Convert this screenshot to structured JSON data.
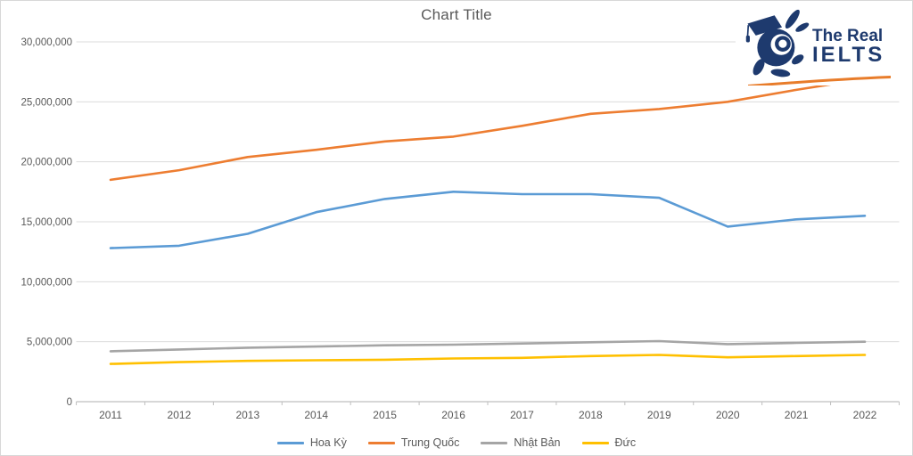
{
  "logo": {
    "line1": "The Real",
    "line2": "IELTS",
    "color": "#1e3a6e",
    "swoosh_color": "#e87c2a"
  },
  "chart_data": {
    "type": "line",
    "title": "Chart Title",
    "categories": [
      "2011",
      "2012",
      "2013",
      "2014",
      "2015",
      "2016",
      "2017",
      "2018",
      "2019",
      "2020",
      "2021",
      "2022"
    ],
    "series": [
      {
        "name": "Hoa Kỳ",
        "color": "#5B9BD5",
        "values": [
          12800000,
          13000000,
          14000000,
          15800000,
          16900000,
          17500000,
          17300000,
          17300000,
          17000000,
          14600000,
          15200000,
          15500000
        ]
      },
      {
        "name": "Trung Quốc",
        "color": "#ED7D31",
        "values": [
          18500000,
          19300000,
          20400000,
          21000000,
          21700000,
          22100000,
          23000000,
          24000000,
          24400000,
          25000000,
          26000000,
          26900000
        ]
      },
      {
        "name": "Nhật Bản",
        "color": "#A5A5A5",
        "values": [
          4200000,
          4350000,
          4500000,
          4600000,
          4700000,
          4750000,
          4850000,
          4950000,
          5050000,
          4800000,
          4900000,
          5000000
        ]
      },
      {
        "name": "Đức",
        "color": "#FFC000",
        "values": [
          3150000,
          3300000,
          3400000,
          3450000,
          3500000,
          3600000,
          3650000,
          3800000,
          3900000,
          3700000,
          3800000,
          3900000
        ]
      }
    ],
    "y_axis": {
      "min": 0,
      "max": 30000000,
      "step": 5000000,
      "tick_labels": [
        "0",
        "5,000,000",
        "10,000,000",
        "15,000,000",
        "20,000,000",
        "25,000,000",
        "30,000,000"
      ]
    },
    "grid": true,
    "legend_position": "bottom",
    "text_color": "#595959",
    "gridline_color": "#DBDBDB",
    "axis_color": "#BFBFBF"
  }
}
